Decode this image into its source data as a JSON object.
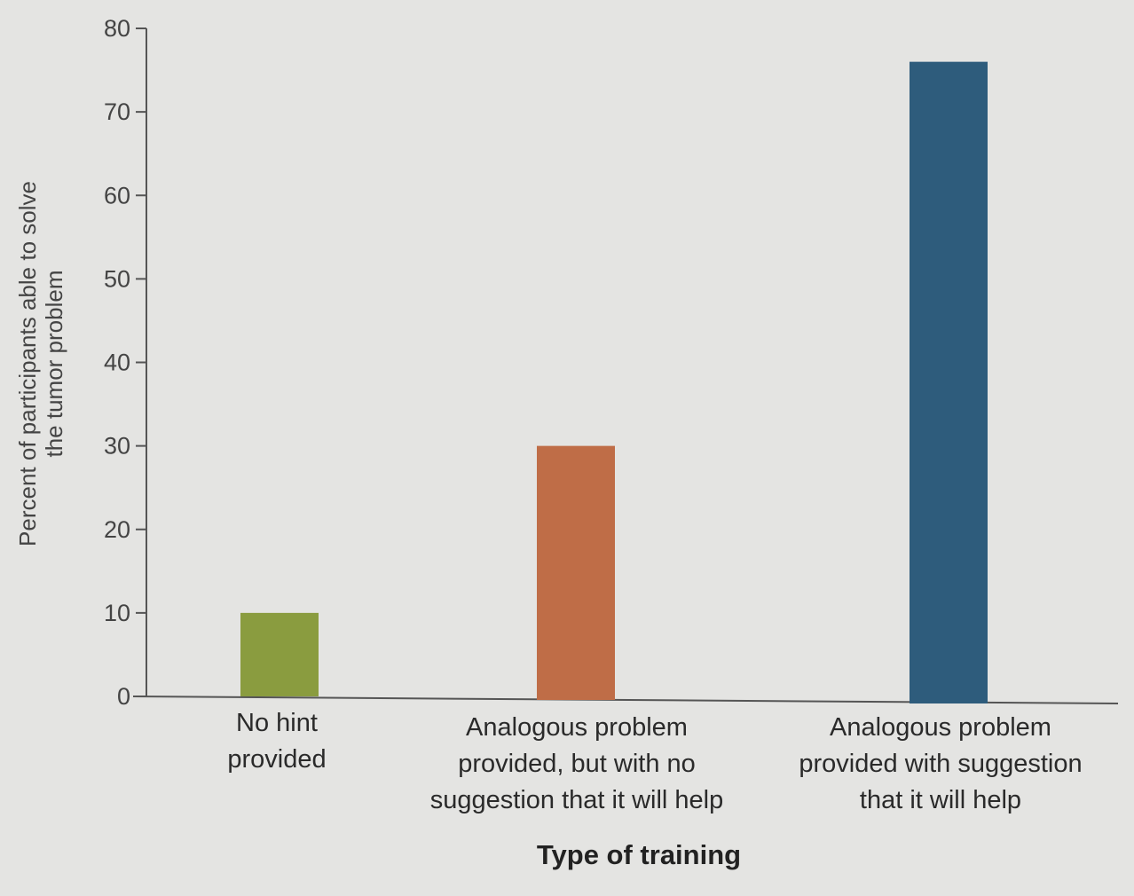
{
  "chart_data": {
    "type": "bar",
    "title": "",
    "xlabel": "Type of training",
    "ylabel_line1": "Percent of participants able to solve",
    "ylabel_line2": "the tumor problem",
    "ylim": [
      0,
      80
    ],
    "yticks": [
      0,
      10,
      20,
      30,
      40,
      50,
      60,
      70,
      80
    ],
    "categories": [
      "No hint\nprovided",
      "Analogous problem\nprovided, but with no\nsuggestion that it will help",
      "Analogous problem\nprovided with suggestion\nthat it will help"
    ],
    "values": [
      10,
      30,
      76
    ],
    "colors": [
      "#8a9c3f",
      "#bf6d47",
      "#2e5c7c"
    ],
    "grid": false
  }
}
